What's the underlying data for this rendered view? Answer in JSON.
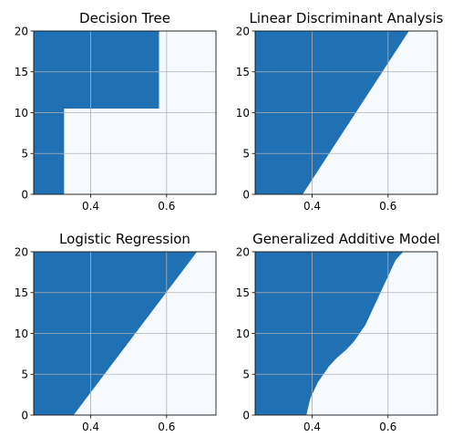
{
  "colors": {
    "class_a": "#2070b4",
    "class_b": "#f6faff",
    "grid": "#b0b0b0",
    "axes": "#000000"
  },
  "chart_data": [
    {
      "type": "heatmap",
      "title": "Decision Tree",
      "xlabel": "",
      "ylabel": "",
      "xlim": [
        0.25,
        0.73
      ],
      "ylim": [
        0,
        20
      ],
      "xticks": [
        0.4,
        0.6
      ],
      "xtick_labels": [
        "0.4",
        "0.6"
      ],
      "yticks": [
        0,
        5,
        10,
        15,
        20
      ],
      "ytick_labels": [
        "0",
        "5",
        "10",
        "15",
        "20"
      ],
      "grid": true,
      "boundary_kind": "steps",
      "boundary": [
        {
          "y_from": 0,
          "y_to": 10.5,
          "x": 0.33
        },
        {
          "y_from": 10.5,
          "y_to": 20,
          "x": 0.58
        }
      ],
      "regions": {
        "left_of_boundary": "class_a",
        "right_of_boundary": "class_b"
      }
    },
    {
      "type": "heatmap",
      "title": "Linear Discriminant Analysis",
      "xlabel": "",
      "ylabel": "",
      "xlim": [
        0.25,
        0.73
      ],
      "ylim": [
        0,
        20
      ],
      "xticks": [
        0.4,
        0.6
      ],
      "xtick_labels": [
        "0.4",
        "0.6"
      ],
      "yticks": [
        0,
        5,
        10,
        15,
        20
      ],
      "ytick_labels": [
        "0",
        "5",
        "10",
        "15",
        "20"
      ],
      "grid": true,
      "boundary_kind": "curve",
      "boundary": [
        [
          0,
          0.375
        ],
        [
          20,
          0.655
        ]
      ],
      "regions": {
        "left_of_boundary": "class_a",
        "right_of_boundary": "class_b"
      }
    },
    {
      "type": "heatmap",
      "title": "Logistic Regression",
      "xlabel": "",
      "ylabel": "",
      "xlim": [
        0.25,
        0.73
      ],
      "ylim": [
        0,
        20
      ],
      "xticks": [
        0.4,
        0.6
      ],
      "xtick_labels": [
        "0.4",
        "0.6"
      ],
      "yticks": [
        0,
        5,
        10,
        15,
        20
      ],
      "ytick_labels": [
        "0",
        "5",
        "10",
        "15",
        "20"
      ],
      "grid": true,
      "boundary_kind": "curve",
      "boundary": [
        [
          0,
          0.355
        ],
        [
          20,
          0.68
        ]
      ],
      "regions": {
        "left_of_boundary": "class_a",
        "right_of_boundary": "class_b"
      }
    },
    {
      "type": "heatmap",
      "title": "Generalized Additive Model",
      "xlabel": "",
      "ylabel": "",
      "xlim": [
        0.25,
        0.73
      ],
      "ylim": [
        0,
        20
      ],
      "xticks": [
        0.4,
        0.6
      ],
      "xtick_labels": [
        "0.4",
        "0.6"
      ],
      "yticks": [
        0,
        5,
        10,
        15,
        20
      ],
      "ytick_labels": [
        "0",
        "5",
        "10",
        "15",
        "20"
      ],
      "grid": true,
      "boundary_kind": "curve",
      "boundary": [
        [
          0,
          0.385
        ],
        [
          1,
          0.39
        ],
        [
          2,
          0.395
        ],
        [
          3,
          0.405
        ],
        [
          4,
          0.415
        ],
        [
          5,
          0.43
        ],
        [
          6,
          0.445
        ],
        [
          7,
          0.465
        ],
        [
          8,
          0.49
        ],
        [
          9,
          0.51
        ],
        [
          10,
          0.525
        ],
        [
          11,
          0.54
        ],
        [
          12,
          0.55
        ],
        [
          13,
          0.56
        ],
        [
          14,
          0.57
        ],
        [
          15,
          0.58
        ],
        [
          16,
          0.59
        ],
        [
          17,
          0.6
        ],
        [
          18,
          0.61
        ],
        [
          19,
          0.62
        ],
        [
          20,
          0.64
        ]
      ],
      "regions": {
        "left_of_boundary": "class_a",
        "right_of_boundary": "class_b"
      }
    }
  ]
}
